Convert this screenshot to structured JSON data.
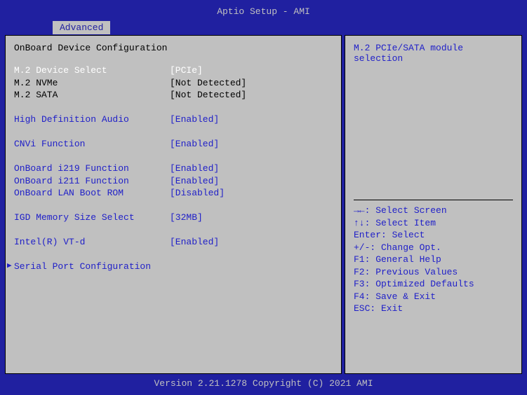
{
  "title": "Aptio Setup - AMI",
  "tab": "Advanced",
  "section_title": "OnBoard Device Configuration",
  "settings": [
    {
      "label": "M.2 Device Select",
      "value": "[PCIe]",
      "label_style": "white",
      "value_style": "white"
    },
    {
      "label": "M.2 NVMe",
      "value": "[Not Detected]",
      "label_style": "black",
      "value_style": "black"
    },
    {
      "label": "M.2 SATA",
      "value": "[Not Detected]",
      "label_style": "black",
      "value_style": "black"
    },
    {
      "spacer": true
    },
    {
      "label": "High Definition Audio",
      "value": "[Enabled]",
      "label_style": "blue",
      "value_style": "blue"
    },
    {
      "spacer": true
    },
    {
      "label": "CNVi Function",
      "value": "[Enabled]",
      "label_style": "blue",
      "value_style": "blue"
    },
    {
      "spacer": true
    },
    {
      "label": "OnBoard i219 Function",
      "value": "[Enabled]",
      "label_style": "blue",
      "value_style": "blue"
    },
    {
      "label": "OnBoard i211 Function",
      "value": "[Enabled]",
      "label_style": "blue",
      "value_style": "blue"
    },
    {
      "label": "OnBoard LAN Boot ROM",
      "value": "[Disabled]",
      "label_style": "blue",
      "value_style": "blue"
    },
    {
      "spacer": true
    },
    {
      "label": "IGD Memory Size Select",
      "value": "[32MB]",
      "label_style": "blue",
      "value_style": "blue"
    },
    {
      "spacer": true
    },
    {
      "label": "Intel(R) VT-d",
      "value": "[Enabled]",
      "label_style": "blue",
      "value_style": "blue"
    },
    {
      "spacer": true
    },
    {
      "label": "Serial Port Configuration",
      "value": "",
      "label_style": "blue",
      "value_style": "blue",
      "submenu": true
    }
  ],
  "help_text": "M.2 PCIe/SATA module selection",
  "help_keys": [
    "→←: Select Screen",
    "↑↓: Select Item",
    "Enter: Select",
    "+/-: Change Opt.",
    "F1: General Help",
    "F2: Previous Values",
    "F3: Optimized Defaults",
    "F4: Save & Exit",
    "ESC: Exit"
  ],
  "footer": "Version 2.21.1278 Copyright (C) 2021 AMI",
  "colors": {
    "frame_bg": "#2020a0",
    "panel_bg": "#c0c0c0",
    "blue_text": "#2020c8",
    "highlight_text": "#ffffff",
    "normal_text": "#000000",
    "title_text": "#c0c0c0"
  }
}
